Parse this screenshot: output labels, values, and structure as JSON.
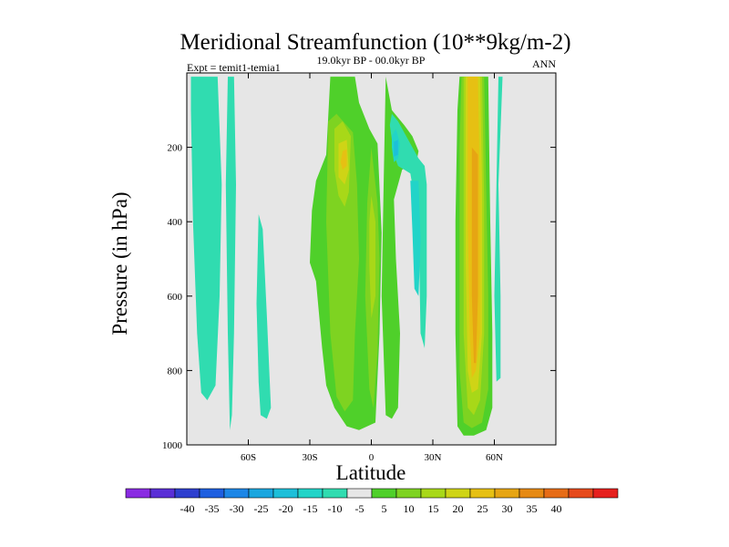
{
  "chart_data": {
    "type": "heatmap",
    "title": "Meridional Streamfunction (10**9kg/m-2)",
    "subtitle": "19.0kyr BP - 00.0kyr BP",
    "left_annotation": "Expt = temit1-temia1",
    "right_annotation": "ANN",
    "xlabel": "Latitude",
    "ylabel": "Pressure (in hPa)",
    "xlim": [
      -90,
      90
    ],
    "ylim": [
      1000,
      0
    ],
    "x_ticks": [
      {
        "value": -60,
        "label": "60S"
      },
      {
        "value": -30,
        "label": "30S"
      },
      {
        "value": 0,
        "label": "0"
      },
      {
        "value": 30,
        "label": "30N"
      },
      {
        "value": 60,
        "label": "60N"
      }
    ],
    "y_ticks": [
      {
        "value": 200,
        "label": "200"
      },
      {
        "value": 400,
        "label": "400"
      },
      {
        "value": 600,
        "label": "600"
      },
      {
        "value": 800,
        "label": "800"
      },
      {
        "value": 1000,
        "label": "1000"
      }
    ],
    "background_color": "#e6e6e6",
    "colorbar": {
      "colors": [
        "#8a2be2",
        "#5a2fd6",
        "#2e3fcf",
        "#1e5fe0",
        "#1c86e6",
        "#1aa6df",
        "#1dbfd9",
        "#22d4c8",
        "#30dcb0",
        "#e6e6e6",
        "#4fd02a",
        "#7ed321",
        "#a8d818",
        "#cfd416",
        "#e6c013",
        "#e6a513",
        "#e68a14",
        "#e66c17",
        "#e64a1c",
        "#e6201e"
      ],
      "labels": [
        "-40",
        "-35",
        "-30",
        "-25",
        "-20",
        "-15",
        "-10",
        "-5",
        "5",
        "10",
        "15",
        "20",
        "25",
        "30",
        "35",
        "40"
      ]
    },
    "regions": [
      {
        "level": -5,
        "color": "#30dcb0",
        "points": [
          [
            -88,
            10
          ],
          [
            -75,
            10
          ],
          [
            -73,
            300
          ],
          [
            -74,
            600
          ],
          [
            -76,
            840
          ],
          [
            -80,
            880
          ],
          [
            -83,
            860
          ],
          [
            -85,
            700
          ],
          [
            -87,
            400
          ],
          [
            -88,
            100
          ]
        ]
      },
      {
        "level": -5,
        "color": "#30dcb0",
        "points": [
          [
            -70,
            10
          ],
          [
            -67,
            10
          ],
          [
            -66,
            300
          ],
          [
            -67,
            700
          ],
          [
            -68,
            920
          ],
          [
            -69,
            960
          ],
          [
            -70,
            700
          ],
          [
            -71,
            300
          ]
        ]
      },
      {
        "level": -5,
        "color": "#30dcb0",
        "points": [
          [
            -55,
            380
          ],
          [
            -53,
            420
          ],
          [
            -51,
            650
          ],
          [
            -49,
            900
          ],
          [
            -51,
            930
          ],
          [
            -54,
            920
          ],
          [
            -55,
            830
          ],
          [
            -56,
            620
          ]
        ]
      },
      {
        "level": 5,
        "color": "#4fd02a",
        "points": [
          [
            -29,
            370
          ],
          [
            -27,
            290
          ],
          [
            -22,
            220
          ],
          [
            -20,
            10
          ],
          [
            -8,
            10
          ],
          [
            -6,
            80
          ],
          [
            -1,
            150
          ],
          [
            3,
            190
          ],
          [
            5,
            430
          ],
          [
            4,
            700
          ],
          [
            2,
            940
          ],
          [
            -6,
            960
          ],
          [
            -12,
            950
          ],
          [
            -18,
            900
          ],
          [
            -22,
            840
          ],
          [
            -24,
            740
          ],
          [
            -27,
            560
          ],
          [
            -30,
            510
          ]
        ]
      },
      {
        "level": 5,
        "color": "#4fd02a",
        "points": [
          [
            7,
            10
          ],
          [
            10,
            100
          ],
          [
            16,
            140
          ],
          [
            20,
            170
          ],
          [
            23,
            210
          ],
          [
            22,
            240
          ],
          [
            15,
            260
          ],
          [
            11,
            340
          ],
          [
            12,
            500
          ],
          [
            14,
            700
          ],
          [
            13,
            900
          ],
          [
            10,
            930
          ],
          [
            7,
            920
          ],
          [
            5,
            600
          ],
          [
            6,
            300
          ]
        ]
      },
      {
        "level": 5,
        "color": "#4fd02a",
        "points": [
          [
            43,
            10
          ],
          [
            57,
            10
          ],
          [
            58,
            400
          ],
          [
            59,
            700
          ],
          [
            59,
            900
          ],
          [
            56,
            960
          ],
          [
            50,
            975
          ],
          [
            45,
            975
          ],
          [
            42,
            950
          ],
          [
            41,
            700
          ],
          [
            41,
            400
          ],
          [
            42,
            100
          ]
        ]
      },
      {
        "level": 10,
        "color": "#7ed321",
        "points": [
          [
            -21,
            130
          ],
          [
            -17,
            110
          ],
          [
            -9,
            160
          ],
          [
            -7,
            300
          ],
          [
            -6,
            500
          ],
          [
            -8,
            700
          ],
          [
            -9,
            880
          ],
          [
            -13,
            910
          ],
          [
            -17,
            870
          ],
          [
            -20,
            700
          ],
          [
            -22,
            400
          ]
        ]
      },
      {
        "level": 10,
        "color": "#7ed321",
        "points": [
          [
            0,
            200
          ],
          [
            3,
            350
          ],
          [
            4,
            500
          ],
          [
            3,
            750
          ],
          [
            1,
            900
          ],
          [
            -1,
            850
          ],
          [
            -3,
            600
          ],
          [
            -2,
            350
          ]
        ]
      },
      {
        "level": 10,
        "color": "#7ed321",
        "points": [
          [
            44,
            10
          ],
          [
            55,
            10
          ],
          [
            56,
            300
          ],
          [
            57,
            600
          ],
          [
            57,
            850
          ],
          [
            54,
            940
          ],
          [
            49,
            955
          ],
          [
            45,
            940
          ],
          [
            43,
            800
          ],
          [
            43,
            500
          ],
          [
            43,
            200
          ]
        ]
      },
      {
        "level": 15,
        "color": "#a8d818",
        "points": [
          [
            -18,
            150
          ],
          [
            -14,
            130
          ],
          [
            -10,
            170
          ],
          [
            -11,
            320
          ],
          [
            -13,
            360
          ],
          [
            -16,
            330
          ],
          [
            -18,
            260
          ]
        ]
      },
      {
        "level": 15,
        "color": "#a8d818",
        "points": [
          [
            0,
            330
          ],
          [
            2,
            400
          ],
          [
            2,
            600
          ],
          [
            0,
            660
          ],
          [
            -1,
            520
          ],
          [
            -1,
            400
          ]
        ]
      },
      {
        "level": 15,
        "color": "#a8d818",
        "points": [
          [
            45,
            10
          ],
          [
            54,
            10
          ],
          [
            55,
            350
          ],
          [
            55,
            700
          ],
          [
            53,
            880
          ],
          [
            50,
            920
          ],
          [
            47,
            900
          ],
          [
            45,
            700
          ],
          [
            45,
            400
          ]
        ]
      },
      {
        "level": 20,
        "color": "#cfd416",
        "points": [
          [
            -16,
            190
          ],
          [
            -12,
            180
          ],
          [
            -11,
            260
          ],
          [
            -13,
            300
          ],
          [
            -16,
            280
          ]
        ]
      },
      {
        "level": 20,
        "color": "#cfd416",
        "points": [
          [
            46,
            10
          ],
          [
            53,
            10
          ],
          [
            54,
            300
          ],
          [
            54,
            700
          ],
          [
            52,
            850
          ],
          [
            49,
            860
          ],
          [
            47,
            800
          ],
          [
            46,
            500
          ]
        ]
      },
      {
        "level": 25,
        "color": "#e6c013",
        "points": [
          [
            -14,
            210
          ],
          [
            -12,
            205
          ],
          [
            -12,
            250
          ],
          [
            -14,
            260
          ],
          [
            -15,
            240
          ]
        ]
      },
      {
        "level": 25,
        "color": "#e6c013",
        "points": [
          [
            47,
            10
          ],
          [
            52,
            10
          ],
          [
            53,
            350
          ],
          [
            53,
            700
          ],
          [
            51,
            800
          ],
          [
            49,
            820
          ],
          [
            48,
            700
          ],
          [
            47,
            400
          ]
        ]
      },
      {
        "level": 30,
        "color": "#e6a513",
        "points": [
          [
            49,
            200
          ],
          [
            52,
            220
          ],
          [
            52,
            600
          ],
          [
            51,
            780
          ],
          [
            50,
            780
          ],
          [
            49,
            600
          ]
        ]
      },
      {
        "level": -5,
        "color": "#30dcb0",
        "points": [
          [
            9,
            140
          ],
          [
            10,
            110
          ],
          [
            13,
            130
          ],
          [
            17,
            170
          ],
          [
            23,
            230
          ],
          [
            26,
            250
          ],
          [
            27,
            300
          ],
          [
            27,
            600
          ],
          [
            26,
            740
          ],
          [
            24,
            700
          ],
          [
            23,
            400
          ],
          [
            19,
            270
          ],
          [
            13,
            250
          ],
          [
            11,
            220
          ]
        ]
      },
      {
        "level": -5,
        "color": "#30dcb0",
        "points": [
          [
            62,
            10
          ],
          [
            64,
            10
          ],
          [
            62,
            300
          ],
          [
            63,
            600
          ],
          [
            63,
            820
          ],
          [
            61,
            830
          ],
          [
            60,
            600
          ],
          [
            61,
            300
          ]
        ]
      },
      {
        "level": -10,
        "color": "#22d4c8",
        "points": [
          [
            10,
            170
          ],
          [
            12,
            150
          ],
          [
            14,
            190
          ],
          [
            13,
            230
          ],
          [
            11,
            240
          ],
          [
            10,
            200
          ]
        ]
      },
      {
        "level": -10,
        "color": "#22d4c8",
        "points": [
          [
            19,
            290
          ],
          [
            23,
            290
          ],
          [
            24,
            450
          ],
          [
            23,
            600
          ],
          [
            21,
            580
          ],
          [
            20,
            420
          ]
        ]
      },
      {
        "level": -15,
        "color": "#1dbfd9",
        "points": [
          [
            11,
            185
          ],
          [
            13,
            180
          ],
          [
            13,
            220
          ],
          [
            11,
            225
          ]
        ]
      }
    ]
  }
}
